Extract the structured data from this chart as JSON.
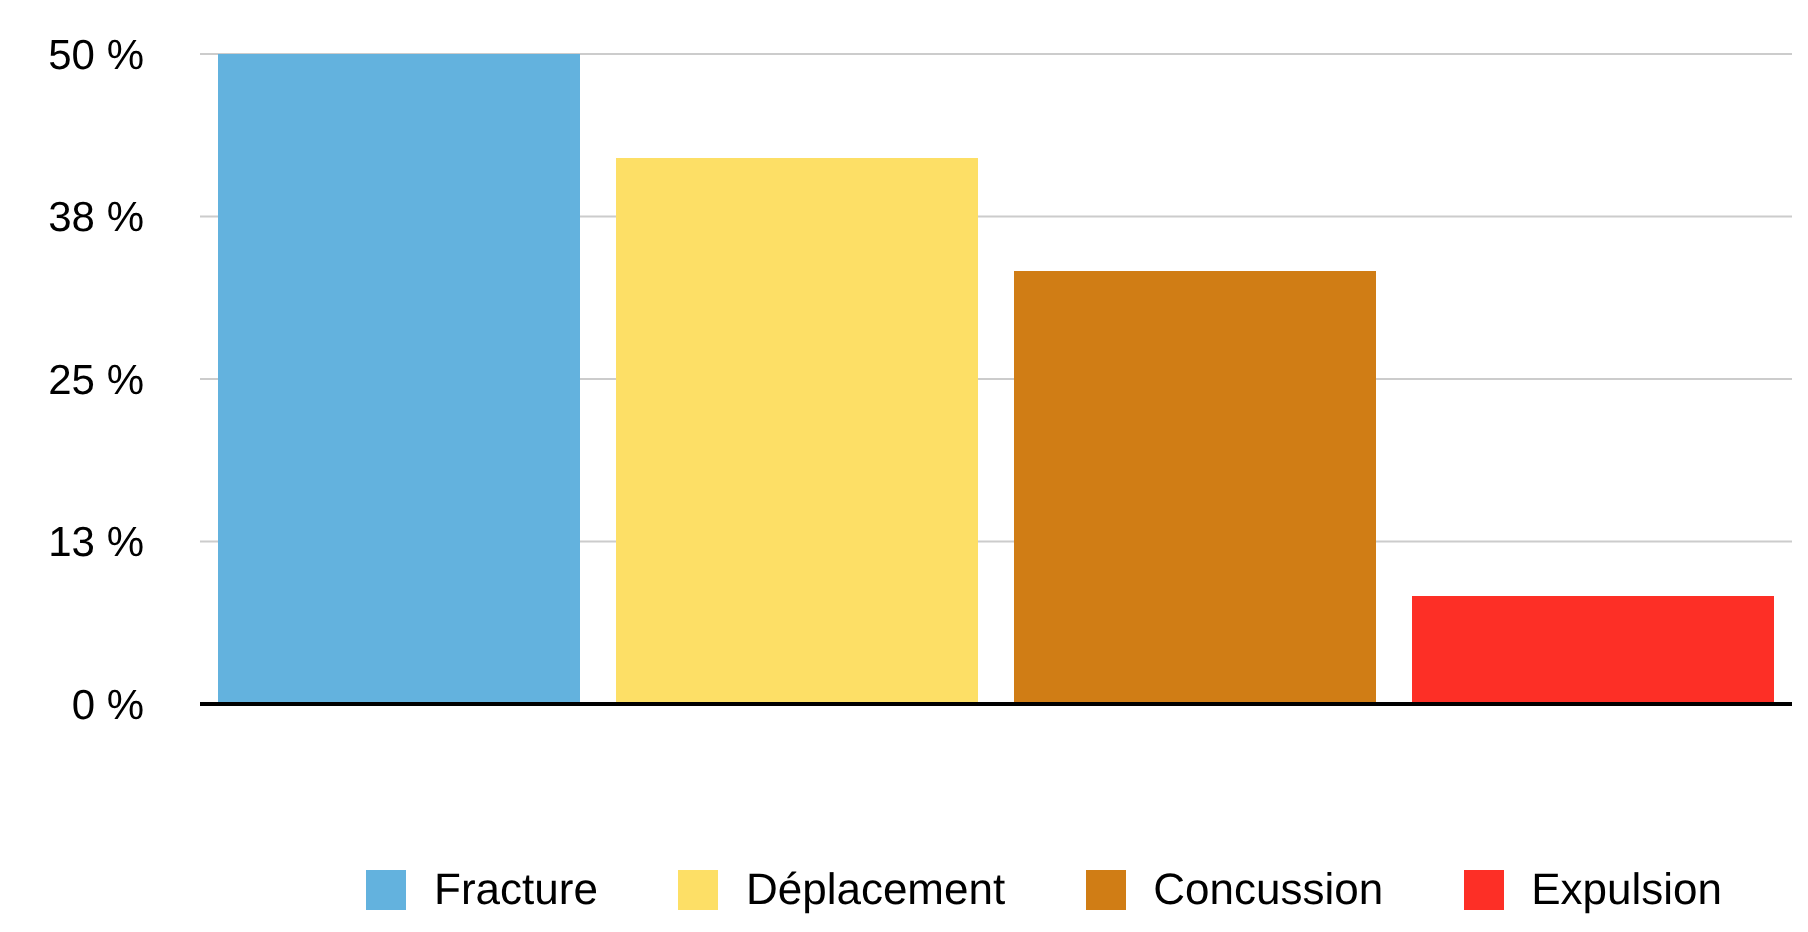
{
  "chart_data": {
    "type": "bar",
    "stacked": true,
    "categories": [
      null,
      null,
      null,
      null
    ],
    "series": [
      {
        "name": "Fracture",
        "color": "#63b2de",
        "values": [
          50,
          null,
          null,
          null
        ]
      },
      {
        "name": "Déplacement",
        "color": "#fddf66",
        "values": [
          null,
          42,
          null,
          null
        ]
      },
      {
        "name": "Concussion",
        "color": "#d07d15",
        "values": [
          null,
          null,
          33.3,
          null
        ]
      },
      {
        "name": "Expulsion",
        "color": "#fd2f26",
        "values": [
          null,
          null,
          null,
          8.3
        ]
      }
    ],
    "ylim": [
      0,
      50
    ],
    "yticks": [
      {
        "value": 0,
        "label": "0 %"
      },
      {
        "value": 12.5,
        "label": "13 %"
      },
      {
        "value": 25,
        "label": "25 %"
      },
      {
        "value": 37.5,
        "label": "38 %"
      },
      {
        "value": 50,
        "label": "50 %"
      }
    ],
    "grid": "y",
    "legend": "bottom"
  }
}
